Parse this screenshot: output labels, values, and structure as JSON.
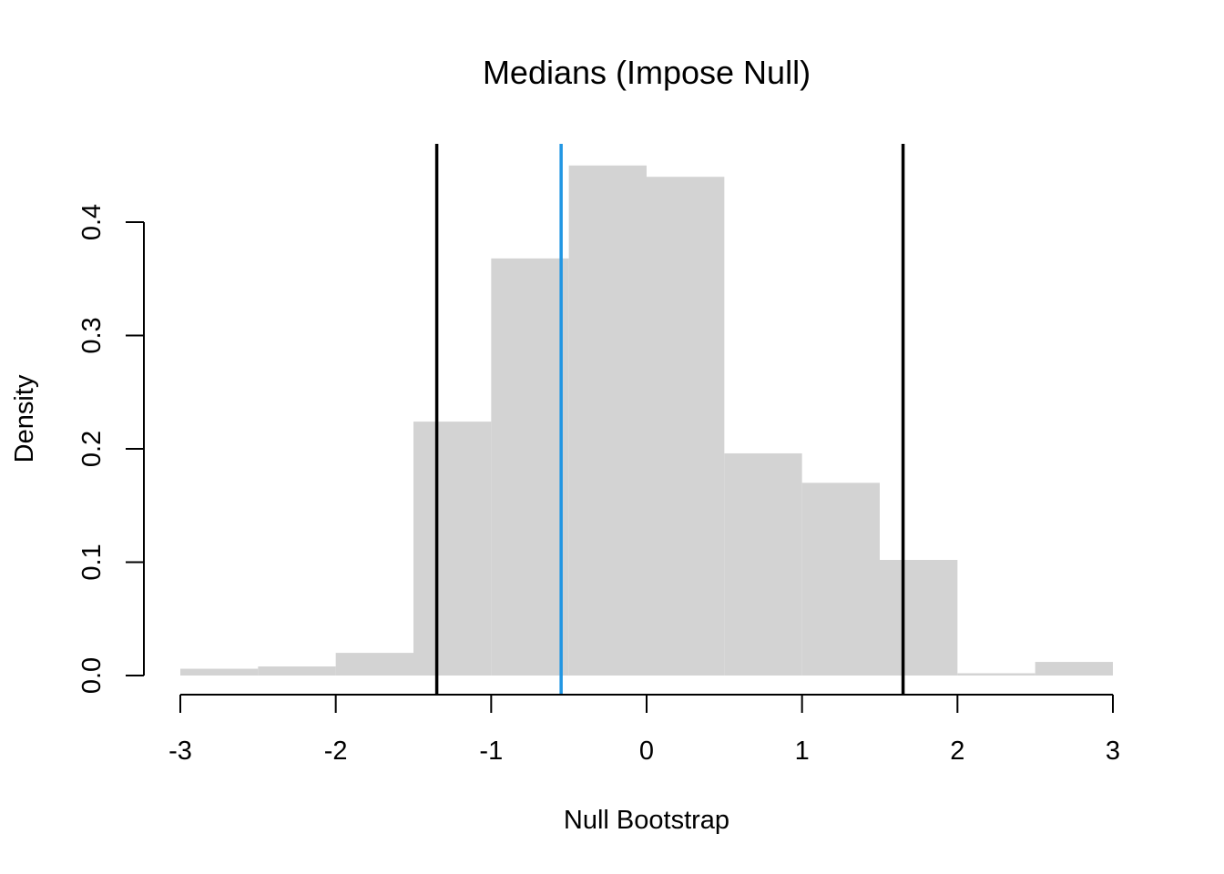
{
  "chart_data": {
    "type": "bar",
    "title": "Medians (Impose Null)",
    "xlabel": "Null Bootstrap",
    "ylabel": "Density",
    "xlim": [
      -3,
      3
    ],
    "ylim": [
      0,
      0.45
    ],
    "x_ticks": [
      "-3",
      "-2",
      "-1",
      "0",
      "1",
      "2",
      "3"
    ],
    "y_ticks": [
      "0.0",
      "0.1",
      "0.2",
      "0.3",
      "0.4"
    ],
    "grid": false,
    "bins": [
      {
        "x0": -3.0,
        "x1": -2.5,
        "density": 0.006
      },
      {
        "x0": -2.5,
        "x1": -2.0,
        "density": 0.008
      },
      {
        "x0": -2.0,
        "x1": -1.5,
        "density": 0.02
      },
      {
        "x0": -1.5,
        "x1": -1.0,
        "density": 0.224
      },
      {
        "x0": -1.0,
        "x1": -0.5,
        "density": 0.368
      },
      {
        "x0": -0.5,
        "x1": 0.0,
        "density": 0.45
      },
      {
        "x0": 0.0,
        "x1": 0.5,
        "density": 0.44
      },
      {
        "x0": 0.5,
        "x1": 1.0,
        "density": 0.196
      },
      {
        "x0": 1.0,
        "x1": 1.5,
        "density": 0.17
      },
      {
        "x0": 1.5,
        "x1": 2.0,
        "density": 0.102
      },
      {
        "x0": 2.0,
        "x1": 2.5,
        "density": 0.002
      },
      {
        "x0": 2.5,
        "x1": 3.0,
        "density": 0.012
      }
    ],
    "bar_color": "#d3d3d3",
    "vlines": [
      {
        "x": -1.35,
        "color": "#000000"
      },
      {
        "x": -0.55,
        "color": "#2196e3"
      },
      {
        "x": 1.65,
        "color": "#000000"
      }
    ]
  }
}
